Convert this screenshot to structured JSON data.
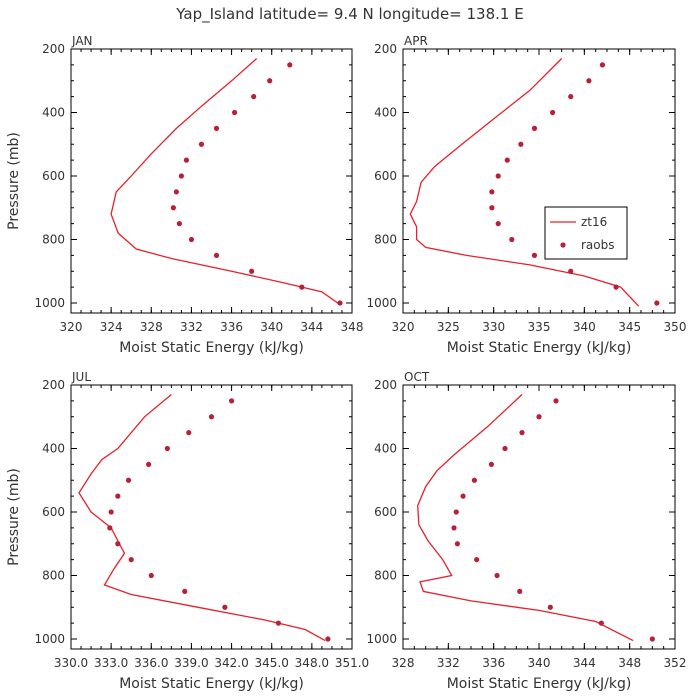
{
  "figure": {
    "title": "Yap_Island  latitude= 9.4 N longitude= 138.1 E"
  },
  "colors": {
    "model_line": "#e8202a",
    "obs_dot": "#b8203a",
    "axis": "#000000",
    "text": "#333333"
  },
  "legend": {
    "panel": "APR",
    "entries": [
      {
        "label": "zt16",
        "marker": "line"
      },
      {
        "label": "raobs",
        "marker": "dot"
      }
    ]
  },
  "chart_data": [
    {
      "type": "line",
      "panel_label": "JAN",
      "xlabel": "Moist Static Energy (kJ/kg)",
      "ylabel": "Pressure (mb)",
      "xlim": [
        320,
        348
      ],
      "ylim": [
        1010,
        200
      ],
      "xticks": [
        "320",
        "324",
        "328",
        "332",
        "336",
        "340",
        "344",
        "348"
      ],
      "xtick_values": [
        320,
        324,
        328,
        332,
        336,
        340,
        344,
        348
      ],
      "yticks": [
        "200",
        "400",
        "600",
        "800",
        "1000"
      ],
      "ytick_values": [
        200,
        400,
        600,
        800,
        1000
      ],
      "model": {
        "name": "zt16",
        "points": [
          [
            338.5,
            230
          ],
          [
            336,
            300
          ],
          [
            333,
            380
          ],
          [
            330.5,
            450
          ],
          [
            328,
            530
          ],
          [
            326,
            600
          ],
          [
            324.5,
            650
          ],
          [
            324,
            720
          ],
          [
            324.7,
            780
          ],
          [
            326.5,
            830
          ],
          [
            330,
            860
          ],
          [
            336,
            900
          ],
          [
            341,
            935
          ],
          [
            345,
            965
          ],
          [
            346.8,
            1005
          ]
        ]
      },
      "obs": {
        "name": "raobs",
        "points": [
          [
            341.8,
            250
          ],
          [
            339.8,
            300
          ],
          [
            338.2,
            350
          ],
          [
            336.3,
            400
          ],
          [
            334.5,
            450
          ],
          [
            333,
            500
          ],
          [
            331.5,
            550
          ],
          [
            331,
            600
          ],
          [
            330.5,
            650
          ],
          [
            330.2,
            700
          ],
          [
            330.8,
            750
          ],
          [
            332,
            800
          ],
          [
            334.5,
            850
          ],
          [
            338,
            900
          ],
          [
            343,
            950
          ],
          [
            346.8,
            1000
          ]
        ]
      }
    },
    {
      "type": "line",
      "panel_label": "APR",
      "xlabel": "Moist Static Energy (kJ/kg)",
      "ylabel": "",
      "xlim": [
        320,
        350
      ],
      "ylim": [
        1010,
        200
      ],
      "xticks": [
        "320",
        "325",
        "330",
        "335",
        "340",
        "345",
        "350"
      ],
      "xtick_values": [
        320,
        325,
        330,
        335,
        340,
        345,
        350
      ],
      "yticks": [
        "200",
        "400",
        "600",
        "800",
        "1000"
      ],
      "ytick_values": [
        200,
        400,
        600,
        800,
        1000
      ],
      "model": {
        "name": "zt16",
        "points": [
          [
            337.5,
            230
          ],
          [
            334,
            330
          ],
          [
            330,
            420
          ],
          [
            326.5,
            500
          ],
          [
            323.5,
            570
          ],
          [
            322,
            620
          ],
          [
            321.5,
            680
          ],
          [
            320.8,
            720
          ],
          [
            321.5,
            760
          ],
          [
            321.5,
            800
          ],
          [
            322.5,
            825
          ],
          [
            327,
            850
          ],
          [
            334,
            880
          ],
          [
            340,
            915
          ],
          [
            344,
            950
          ],
          [
            346,
            1010
          ]
        ]
      },
      "obs": {
        "name": "raobs",
        "points": [
          [
            342,
            250
          ],
          [
            340.5,
            300
          ],
          [
            338.5,
            350
          ],
          [
            336.5,
            400
          ],
          [
            334.5,
            450
          ],
          [
            333,
            500
          ],
          [
            331.5,
            550
          ],
          [
            330.5,
            600
          ],
          [
            329.8,
            650
          ],
          [
            329.8,
            700
          ],
          [
            330.5,
            750
          ],
          [
            332,
            800
          ],
          [
            334.5,
            850
          ],
          [
            338.5,
            900
          ],
          [
            343.5,
            950
          ],
          [
            348,
            1000
          ]
        ]
      }
    },
    {
      "type": "line",
      "panel_label": "JUL",
      "xlabel": "Moist Static Energy (kJ/kg)",
      "ylabel": "Pressure (mb)",
      "xlim": [
        330.0,
        351.0
      ],
      "ylim": [
        1010,
        200
      ],
      "xticks": [
        "330.0",
        "333.0",
        "336.0",
        "339.0",
        "342.0",
        "345.0",
        "348.0",
        "351.0"
      ],
      "xtick_values": [
        330.0,
        333.0,
        336.0,
        339.0,
        342.0,
        345.0,
        348.0,
        351.0
      ],
      "yticks": [
        "200",
        "400",
        "600",
        "800",
        "1000"
      ],
      "ytick_values": [
        200,
        400,
        600,
        800,
        1000
      ],
      "model": {
        "name": "zt16",
        "points": [
          [
            337.5,
            230
          ],
          [
            335.5,
            300
          ],
          [
            333.5,
            400
          ],
          [
            332.3,
            435
          ],
          [
            331.5,
            480
          ],
          [
            330.6,
            540
          ],
          [
            331.5,
            600
          ],
          [
            333,
            650
          ],
          [
            334,
            730
          ],
          [
            333.2,
            780
          ],
          [
            332.5,
            830
          ],
          [
            334.5,
            860
          ],
          [
            339.5,
            900
          ],
          [
            344.5,
            940
          ],
          [
            347.5,
            970
          ],
          [
            349,
            1005
          ]
        ]
      },
      "obs": {
        "name": "raobs",
        "points": [
          [
            342,
            250
          ],
          [
            340.5,
            300
          ],
          [
            338.8,
            350
          ],
          [
            337.2,
            400
          ],
          [
            335.8,
            450
          ],
          [
            334.3,
            500
          ],
          [
            333.5,
            550
          ],
          [
            333,
            600
          ],
          [
            332.9,
            650
          ],
          [
            333.5,
            700
          ],
          [
            334.5,
            750
          ],
          [
            336,
            800
          ],
          [
            338.5,
            850
          ],
          [
            341.5,
            900
          ],
          [
            345.5,
            950
          ],
          [
            349.2,
            1000
          ]
        ]
      }
    },
    {
      "type": "line",
      "panel_label": "OCT",
      "xlabel": "Moist Static Energy (kJ/kg)",
      "ylabel": "",
      "xlim": [
        328,
        352
      ],
      "ylim": [
        1010,
        200
      ],
      "xticks": [
        "328",
        "332",
        "336",
        "340",
        "344",
        "348",
        "352"
      ],
      "xtick_values": [
        328,
        332,
        336,
        340,
        344,
        348,
        352
      ],
      "yticks": [
        "200",
        "400",
        "600",
        "800",
        "1000"
      ],
      "ytick_values": [
        200,
        400,
        600,
        800,
        1000
      ],
      "model": {
        "name": "zt16",
        "points": [
          [
            338.5,
            230
          ],
          [
            335.5,
            330
          ],
          [
            332.5,
            420
          ],
          [
            331,
            470
          ],
          [
            330,
            520
          ],
          [
            329.3,
            580
          ],
          [
            329.4,
            640
          ],
          [
            330.2,
            690
          ],
          [
            331.5,
            750
          ],
          [
            332.3,
            800
          ],
          [
            329.5,
            820
          ],
          [
            329.8,
            850
          ],
          [
            334,
            880
          ],
          [
            340,
            910
          ],
          [
            345,
            945
          ],
          [
            348.3,
            1005
          ]
        ]
      },
      "obs": {
        "name": "raobs",
        "points": [
          [
            341.5,
            250
          ],
          [
            340,
            300
          ],
          [
            338.5,
            350
          ],
          [
            337,
            400
          ],
          [
            335.8,
            450
          ],
          [
            334.3,
            500
          ],
          [
            333.3,
            550
          ],
          [
            332.7,
            600
          ],
          [
            332.5,
            650
          ],
          [
            332.8,
            700
          ],
          [
            334.5,
            750
          ],
          [
            336.3,
            800
          ],
          [
            338.3,
            850
          ],
          [
            341,
            900
          ],
          [
            345.5,
            950
          ],
          [
            350,
            1000
          ]
        ]
      }
    }
  ]
}
